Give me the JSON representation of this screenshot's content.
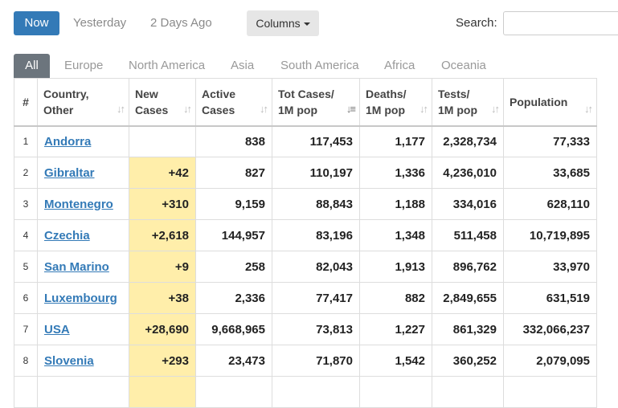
{
  "filters": {
    "now": "Now",
    "yesterday": "Yesterday",
    "two_days_ago": "2 Days Ago"
  },
  "columns_button": "Columns",
  "search": {
    "label": "Search:",
    "placeholder": "",
    "value": ""
  },
  "tabs": [
    "All",
    "Europe",
    "North America",
    "Asia",
    "South America",
    "Africa",
    "Oceania"
  ],
  "headers": {
    "num": "#",
    "country_l1": "Country,",
    "country_l2": "Other",
    "new_l1": "New",
    "new_l2": "Cases",
    "active_l1": "Active",
    "active_l2": "Cases",
    "tot_l1": "Tot Cases/",
    "tot_l2": "1M pop",
    "deaths_l1": "Deaths/",
    "deaths_l2": "1M pop",
    "tests_l1": "Tests/",
    "tests_l2": "1M pop",
    "population": "Population"
  },
  "rows": [
    {
      "num": "1",
      "country": "Andorra",
      "new": "",
      "active": "838",
      "tot": "117,453",
      "deaths": "1,177",
      "tests": "2,328,734",
      "population": "77,333"
    },
    {
      "num": "2",
      "country": "Gibraltar",
      "new": "+42",
      "active": "827",
      "tot": "110,197",
      "deaths": "1,336",
      "tests": "4,236,010",
      "population": "33,685"
    },
    {
      "num": "3",
      "country": "Montenegro",
      "new": "+310",
      "active": "9,159",
      "tot": "88,843",
      "deaths": "1,188",
      "tests": "334,016",
      "population": "628,110"
    },
    {
      "num": "4",
      "country": "Czechia",
      "new": "+2,618",
      "active": "144,957",
      "tot": "83,196",
      "deaths": "1,348",
      "tests": "511,458",
      "population": "10,719,895"
    },
    {
      "num": "5",
      "country": "San Marino",
      "new": "+9",
      "active": "258",
      "tot": "82,043",
      "deaths": "1,913",
      "tests": "896,762",
      "population": "33,970"
    },
    {
      "num": "6",
      "country": "Luxembourg",
      "new": "+38",
      "active": "2,336",
      "tot": "77,417",
      "deaths": "882",
      "tests": "2,849,655",
      "population": "631,519"
    },
    {
      "num": "7",
      "country": "USA",
      "new": "+28,690",
      "active": "9,668,965",
      "tot": "73,813",
      "deaths": "1,227",
      "tests": "861,329",
      "population": "332,066,237"
    },
    {
      "num": "8",
      "country": "Slovenia",
      "new": "+293",
      "active": "23,473",
      "tot": "71,870",
      "deaths": "1,542",
      "tests": "360,252",
      "population": "2,079,095"
    }
  ],
  "icons": {
    "sort": "sort-arrows-icon",
    "sort_active": "sort-descending-icon",
    "dropdown": "caret-down-icon"
  },
  "colors": {
    "primary": "#337ab7",
    "highlight": "#ffeeaa",
    "tab_active": "#6c757d"
  }
}
